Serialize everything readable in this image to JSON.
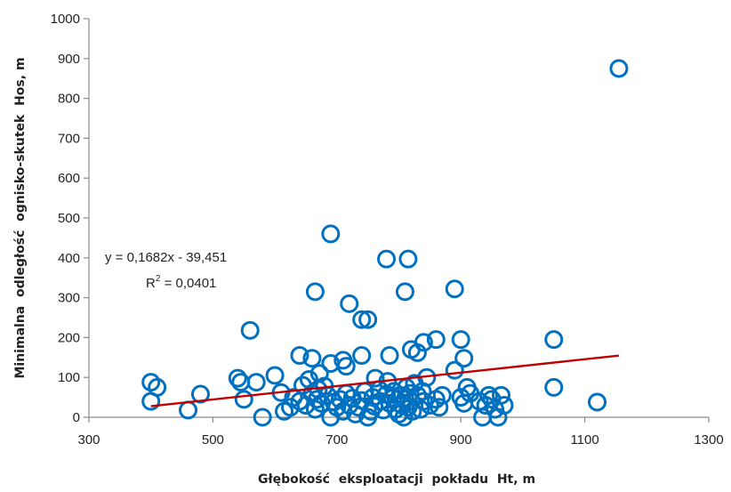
{
  "chart_data": {
    "type": "scatter",
    "xlabel": "Głębokość  eksploatacji  pokładu  Ht, m",
    "ylabel": "Minimalna  odległość  ognisko-skutek  Hos, m",
    "xlim": [
      300,
      1300
    ],
    "ylim": [
      0,
      1000
    ],
    "x_ticks": [
      "300",
      "500",
      "700",
      "900",
      "1100",
      "1300"
    ],
    "y_ticks": [
      "0",
      "100",
      "200",
      "300",
      "400",
      "500",
      "600",
      "700",
      "800",
      "900",
      "1000"
    ],
    "grid": false,
    "marker_color": "#0070c0",
    "trendline": {
      "color": "#c00000",
      "slope": 0.1682,
      "intercept": -39.451,
      "x_range": [
        400,
        1155
      ],
      "equation_text": "y = 0,1682x - 39,451",
      "r2_label": "R",
      "r2_exp": "2",
      "r2_value": " = 0,0401"
    },
    "points": [
      [
        1155,
        875
      ],
      [
        690,
        460
      ],
      [
        780,
        397
      ],
      [
        815,
        397
      ],
      [
        665,
        315
      ],
      [
        810,
        315
      ],
      [
        890,
        322
      ],
      [
        720,
        285
      ],
      [
        740,
        245
      ],
      [
        750,
        245
      ],
      [
        560,
        218
      ],
      [
        820,
        170
      ],
      [
        830,
        162
      ],
      [
        840,
        188
      ],
      [
        860,
        195
      ],
      [
        900,
        195
      ],
      [
        1050,
        195
      ],
      [
        640,
        155
      ],
      [
        740,
        155
      ],
      [
        785,
        155
      ],
      [
        890,
        118
      ],
      [
        905,
        148
      ],
      [
        660,
        148
      ],
      [
        690,
        135
      ],
      [
        710,
        143
      ],
      [
        715,
        128
      ],
      [
        400,
        88
      ],
      [
        410,
        75
      ],
      [
        480,
        58
      ],
      [
        400,
        40
      ],
      [
        460,
        18
      ],
      [
        540,
        98
      ],
      [
        545,
        88
      ],
      [
        550,
        45
      ],
      [
        570,
        88
      ],
      [
        580,
        0
      ],
      [
        600,
        105
      ],
      [
        610,
        62
      ],
      [
        615,
        15
      ],
      [
        625,
        25
      ],
      [
        630,
        50
      ],
      [
        640,
        40
      ],
      [
        645,
        80
      ],
      [
        650,
        30
      ],
      [
        655,
        95
      ],
      [
        660,
        60
      ],
      [
        665,
        20
      ],
      [
        668,
        45
      ],
      [
        670,
        70
      ],
      [
        672,
        110
      ],
      [
        675,
        35
      ],
      [
        680,
        78
      ],
      [
        685,
        55
      ],
      [
        690,
        0
      ],
      [
        695,
        38
      ],
      [
        700,
        25
      ],
      [
        705,
        45
      ],
      [
        710,
        15
      ],
      [
        715,
        60
      ],
      [
        720,
        30
      ],
      [
        725,
        48
      ],
      [
        730,
        8
      ],
      [
        735,
        25
      ],
      [
        740,
        42
      ],
      [
        745,
        65
      ],
      [
        750,
        0
      ],
      [
        755,
        15
      ],
      [
        758,
        50
      ],
      [
        760,
        28
      ],
      [
        762,
        98
      ],
      [
        768,
        70
      ],
      [
        770,
        40
      ],
      [
        775,
        18
      ],
      [
        780,
        58
      ],
      [
        782,
        90
      ],
      [
        785,
        35
      ],
      [
        790,
        48
      ],
      [
        792,
        65
      ],
      [
        795,
        20
      ],
      [
        800,
        8
      ],
      [
        802,
        55
      ],
      [
        805,
        30
      ],
      [
        808,
        0
      ],
      [
        810,
        45
      ],
      [
        812,
        75
      ],
      [
        815,
        25
      ],
      [
        818,
        60
      ],
      [
        820,
        40
      ],
      [
        822,
        15
      ],
      [
        825,
        85
      ],
      [
        830,
        55
      ],
      [
        835,
        20
      ],
      [
        838,
        65
      ],
      [
        840,
        40
      ],
      [
        845,
        100
      ],
      [
        850,
        30
      ],
      [
        860,
        45
      ],
      [
        865,
        25
      ],
      [
        870,
        55
      ],
      [
        900,
        50
      ],
      [
        905,
        35
      ],
      [
        910,
        75
      ],
      [
        915,
        60
      ],
      [
        930,
        40
      ],
      [
        935,
        0
      ],
      [
        940,
        30
      ],
      [
        945,
        55
      ],
      [
        950,
        45
      ],
      [
        955,
        20
      ],
      [
        960,
        0
      ],
      [
        965,
        55
      ],
      [
        970,
        30
      ],
      [
        1050,
        75
      ],
      [
        1120,
        38
      ]
    ]
  }
}
